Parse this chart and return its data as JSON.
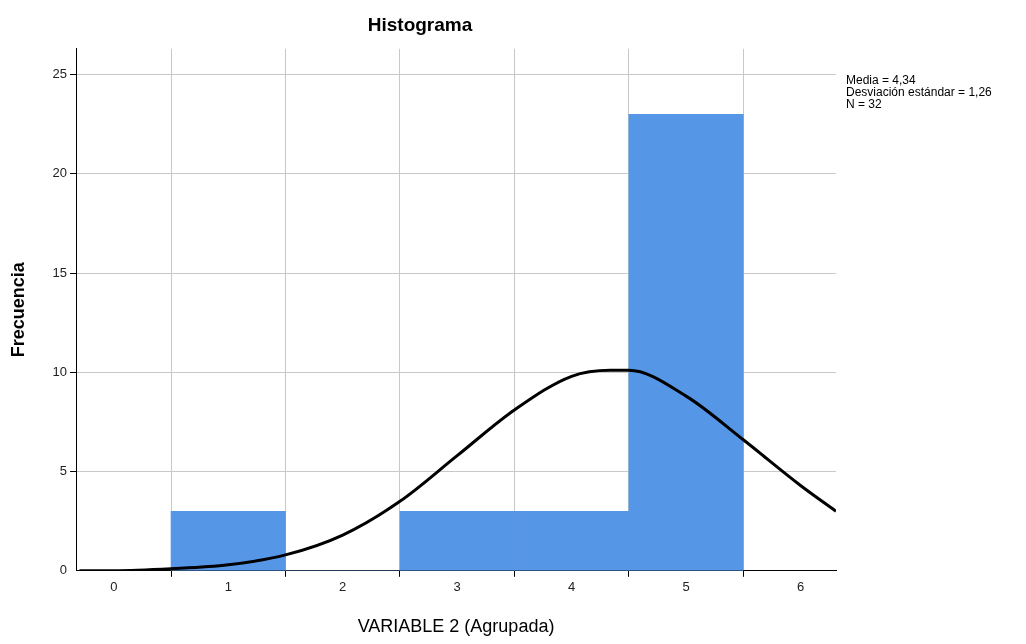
{
  "chart_data": {
    "type": "histogram",
    "title": "Histograma",
    "xlabel": "VARIABLE 2 (Agrupada)",
    "ylabel": "Frecuencia",
    "bins": [
      0.5,
      1.5,
      2.5,
      3.5,
      4.5,
      5.5
    ],
    "values": [
      3,
      0,
      3,
      3,
      23
    ],
    "color": "#5596e6",
    "series": [
      {
        "type": "line",
        "color": "#000000",
        "x": [
          -0.3,
          0,
          0.5,
          1,
          1.5,
          2,
          2.5,
          3,
          3.5,
          4,
          4.34,
          4.5,
          5,
          5.5,
          6,
          6.31
        ],
        "values": [
          0,
          0,
          0.1,
          0.3,
          0.8,
          1.8,
          3.5,
          5.8,
          8.1,
          9.8,
          10.1,
          10.1,
          8.8,
          6.6,
          4.3,
          3.0
        ]
      }
    ],
    "xlim": [
      -0.33,
      6.31
    ],
    "ylim": [
      0,
      26.3
    ],
    "xticks": [
      0,
      1,
      2,
      3,
      4,
      5,
      6
    ],
    "yticks": [
      0,
      5,
      10,
      15,
      20,
      25
    ],
    "grid": true,
    "marker": "none",
    "annotations": [
      "Media = 4,34",
      "Desviación estándar = 1,26",
      "N = 32"
    ]
  }
}
